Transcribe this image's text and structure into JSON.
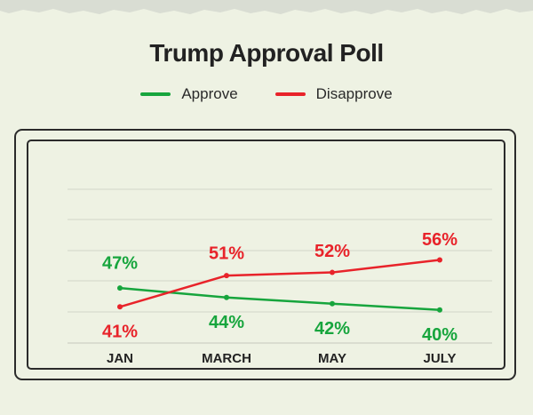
{
  "chart_data": {
    "type": "line",
    "title": "Trump Approval Poll",
    "categories": [
      "JAN",
      "MARCH",
      "MAY",
      "JULY"
    ],
    "series": [
      {
        "name": "Approve",
        "values": [
          47,
          44,
          42,
          40
        ],
        "labels": [
          "47%",
          "44%",
          "42%",
          "40%"
        ],
        "color": "#17a53d"
      },
      {
        "name": "Disapprove",
        "values": [
          41,
          51,
          52,
          56
        ],
        "labels": [
          "41%",
          "51%",
          "52%",
          "56%"
        ],
        "color": "#e8232a"
      }
    ],
    "xlabel": "",
    "ylabel": "",
    "ylim": [
      30,
      60
    ],
    "grid": true,
    "legend": "top-center"
  }
}
